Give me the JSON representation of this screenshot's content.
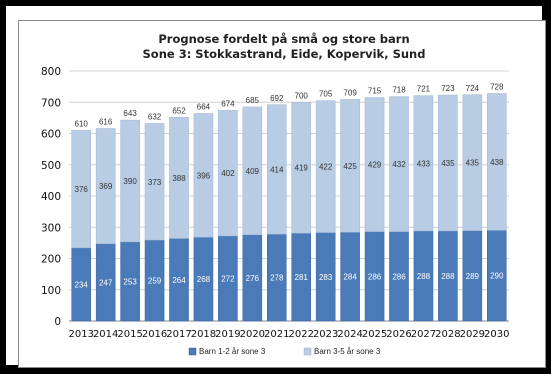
{
  "chart_data": {
    "type": "bar",
    "stacked": true,
    "title": "Prognose fordelt på små og store barn",
    "subtitle": "Sone 3: Stokkastrand, Eide, Kopervik, Sund",
    "xlabel": "",
    "ylabel": "",
    "ylim": [
      0,
      800
    ],
    "yticks": [
      0,
      100,
      200,
      300,
      400,
      500,
      600,
      700,
      800
    ],
    "grid": true,
    "legend_position": "bottom",
    "categories": [
      "2013",
      "2014",
      "2015",
      "2016",
      "2017",
      "2018",
      "2019",
      "2020",
      "2021",
      "2022",
      "2023",
      "2024",
      "2025",
      "2026",
      "2027",
      "2028",
      "2029",
      "2030"
    ],
    "series": [
      {
        "name": "Barn 1-2 år sone 3",
        "color": "#4a7ab8",
        "values": [
          234,
          247,
          253,
          259,
          264,
          268,
          272,
          276,
          278,
          281,
          283,
          284,
          286,
          286,
          288,
          288,
          289,
          290
        ]
      },
      {
        "name": "Barn 3-5 år sone 3",
        "color": "#b8cce4",
        "values": [
          376,
          369,
          390,
          373,
          388,
          396,
          402,
          409,
          414,
          419,
          422,
          425,
          429,
          432,
          433,
          435,
          435,
          438
        ]
      }
    ],
    "totals": [
      610,
      616,
      643,
      632,
      652,
      664,
      674,
      685,
      692,
      700,
      705,
      709,
      715,
      718,
      721,
      723,
      724,
      728
    ]
  }
}
